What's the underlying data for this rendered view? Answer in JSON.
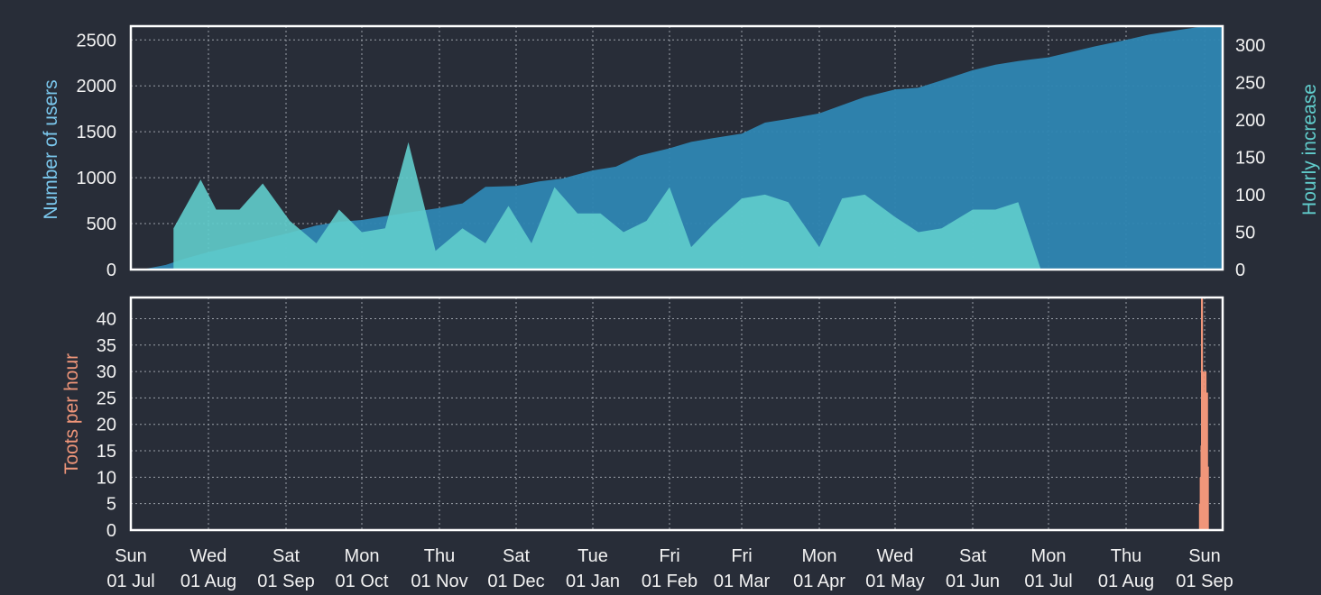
{
  "colors": {
    "background": "#282d38",
    "users_fill": "#2e86b2",
    "hourly_fill": "#61cdcc",
    "toots_fill": "#f0967a",
    "users_label": "#7bc8ee",
    "hourly_label": "#61cdcc",
    "toots_label": "#f0967a",
    "frame": "#ffffff",
    "grid": "#9aa0a8",
    "text": "#f2f2f2"
  },
  "x_axis": {
    "ticks": [
      {
        "day": "Sun",
        "date": "01 Jul"
      },
      {
        "day": "Wed",
        "date": "01 Aug"
      },
      {
        "day": "Sat",
        "date": "01 Sep"
      },
      {
        "day": "Mon",
        "date": "01 Oct"
      },
      {
        "day": "Thu",
        "date": "01 Nov"
      },
      {
        "day": "Sat",
        "date": "01 Dec"
      },
      {
        "day": "Tue",
        "date": "01 Jan"
      },
      {
        "day": "Fri",
        "date": "01 Feb"
      },
      {
        "day": "Fri",
        "date": "01 Mar"
      },
      {
        "day": "Mon",
        "date": "01 Apr"
      },
      {
        "day": "Wed",
        "date": "01 May"
      },
      {
        "day": "Sat",
        "date": "01 Jun"
      },
      {
        "day": "Mon",
        "date": "01 Jul"
      },
      {
        "day": "Thu",
        "date": "01 Aug"
      },
      {
        "day": "Sun",
        "date": "01 Sep"
      }
    ]
  },
  "chart_data": [
    {
      "type": "area",
      "xlabel": "",
      "ylabel": "Number of users",
      "ylabel_right": "Hourly increase",
      "ylim": [
        0,
        2650
      ],
      "ylim_right": [
        0,
        325
      ],
      "yticks": [
        0,
        500,
        1000,
        1500,
        2000,
        2500
      ],
      "yticks_right": [
        0,
        50,
        100,
        150,
        200,
        250,
        300
      ],
      "grid": true,
      "series": [
        {
          "axis": "left",
          "x": [
            0.0,
            0.2,
            0.45,
            0.7,
            1.0,
            1.3,
            1.6,
            2.0,
            2.4,
            2.7,
            3.0,
            3.3,
            3.6,
            4.0,
            4.3,
            4.6,
            5.0,
            5.3,
            5.6,
            6.0,
            6.3,
            6.6,
            7.0,
            7.3,
            7.6,
            8.0,
            8.3,
            8.6,
            9.0,
            9.3,
            9.6,
            10.0,
            10.3,
            10.6,
            11.0,
            11.3,
            11.6,
            12.0,
            12.3,
            12.6,
            13.0,
            13.3,
            13.6,
            14.0
          ],
          "values": [
            0,
            10,
            50,
            120,
            190,
            250,
            310,
            390,
            480,
            520,
            540,
            580,
            620,
            670,
            720,
            900,
            910,
            960,
            990,
            1080,
            1120,
            1240,
            1320,
            1390,
            1430,
            1480,
            1600,
            1640,
            1700,
            1790,
            1880,
            1960,
            1980,
            2060,
            2170,
            2230,
            2270,
            2310,
            2370,
            2430,
            2500,
            2560,
            2600,
            2650
          ]
        },
        {
          "axis": "right",
          "x": [
            0.55,
            0.9,
            1.1,
            1.4,
            1.7,
            2.05,
            2.4,
            2.7,
            3.0,
            3.3,
            3.6,
            3.95,
            4.3,
            4.6,
            4.9,
            5.2,
            5.5,
            5.8,
            6.1,
            6.4,
            6.7,
            7.0,
            7.3,
            7.6,
            8.0,
            8.3,
            8.6,
            9.0,
            9.3,
            9.6,
            10.0,
            10.3,
            10.6,
            11.0,
            11.3,
            11.6,
            11.9,
            12.2,
            12.5,
            12.8,
            13.1,
            13.4,
            13.7
          ],
          "values": [
            55,
            120,
            80,
            80,
            115,
            65,
            35,
            80,
            50,
            55,
            170,
            25,
            55,
            35,
            85,
            35,
            110,
            75,
            75,
            50,
            65,
            110,
            30,
            60,
            95,
            100,
            90,
            30,
            95,
            100,
            70,
            50,
            55,
            80,
            80,
            90,
            0,
            0,
            0,
            0,
            0,
            0,
            0
          ]
        }
      ]
    },
    {
      "type": "bar",
      "xlabel": "",
      "ylabel": "Toots per hour",
      "ylim": [
        0,
        44
      ],
      "yticks": [
        0,
        5,
        10,
        15,
        20,
        25,
        30,
        35,
        40
      ],
      "grid": true,
      "series": [
        {
          "x": [
            13.94,
            13.95,
            13.96,
            13.965,
            13.97,
            13.975,
            13.98,
            13.985,
            13.99,
            13.995,
            14.0,
            14.005,
            14.01,
            14.015,
            14.02,
            14.025,
            14.03,
            14.035,
            14.04
          ],
          "values": [
            5,
            10,
            16,
            44,
            12,
            20,
            8,
            30,
            18,
            12,
            26,
            16,
            30,
            11,
            20,
            10,
            26,
            8,
            12
          ]
        }
      ]
    }
  ]
}
